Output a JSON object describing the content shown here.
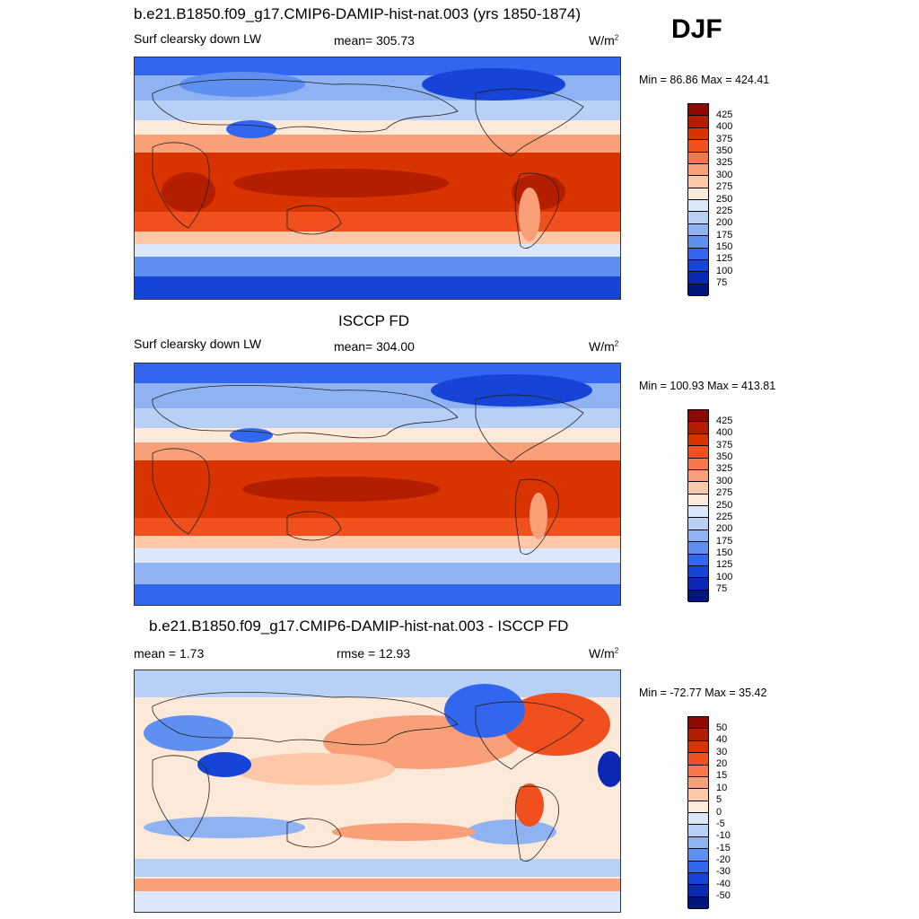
{
  "season": "DJF",
  "unit_base": "W/m",
  "unit_exp": "2",
  "panels": [
    {
      "title": "b.e21.B1850.f09_g17.CMIP6-DAMIP-hist-nat.003 (yrs 1850-1874)",
      "left": "Surf clearsky down LW",
      "center": "mean= 305.73",
      "minmax": "Min =  86.86 Max = 424.41",
      "colorbar_labels": [
        "425",
        "400",
        "375",
        "350",
        "325",
        "300",
        "275",
        "250",
        "225",
        "200",
        "175",
        "150",
        "125",
        "100",
        "75"
      ]
    },
    {
      "title": "ISCCP FD",
      "left": "Surf clearsky down LW",
      "center": "mean= 304.00",
      "minmax": "Min = 100.93 Max = 413.81",
      "colorbar_labels": [
        "425",
        "400",
        "375",
        "350",
        "325",
        "300",
        "275",
        "250",
        "225",
        "200",
        "175",
        "150",
        "125",
        "100",
        "75"
      ]
    },
    {
      "title": "b.e21.B1850.f09_g17.CMIP6-DAMIP-hist-nat.003 - ISCCP FD",
      "left": "mean =   1.73",
      "center": "rmse =  12.93",
      "minmax": "Min = -72.77 Max =  35.42",
      "colorbar_labels": [
        "50",
        "40",
        "30",
        "20",
        "15",
        "10",
        "5",
        "0",
        "-5",
        "-10",
        "-15",
        "-20",
        "-30",
        "-40",
        "-50"
      ]
    }
  ],
  "palette": [
    "#8c0a00",
    "#b31d00",
    "#d93300",
    "#f0501e",
    "#f5784a",
    "#f9a078",
    "#fcc8a8",
    "#fde9da",
    "#dbe7fa",
    "#b9d0f6",
    "#8fb3f2",
    "#5f8ff0",
    "#3366ee",
    "#1644d6",
    "#0a28b3",
    "#001580"
  ]
}
